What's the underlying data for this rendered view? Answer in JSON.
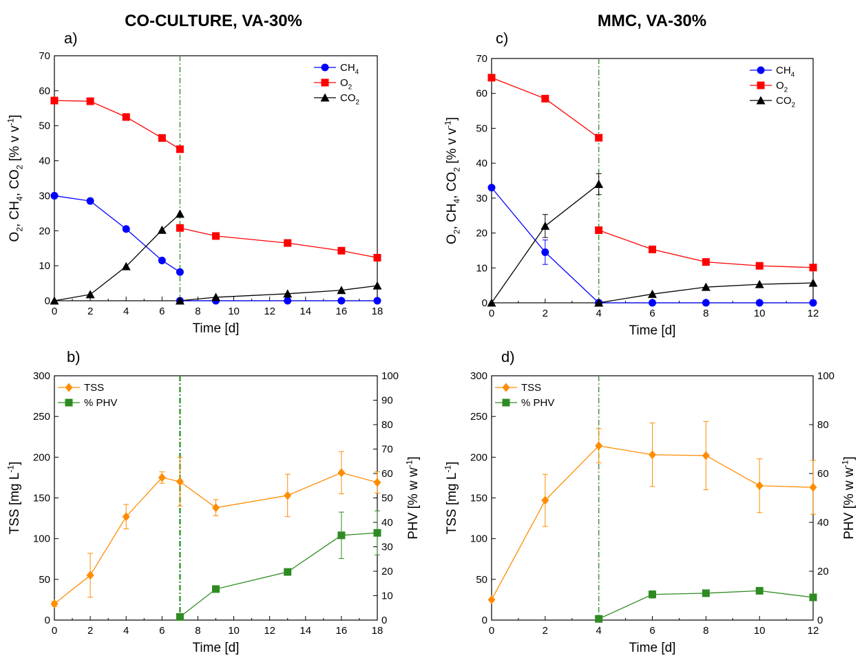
{
  "figure": {
    "left_title": "CO-CULTURE, VA-30%",
    "right_title": "MMC, VA-30%"
  },
  "colors": {
    "ch4": "#0000ff",
    "o2": "#ff0000",
    "co2": "#000000",
    "tss": "#ff8c00",
    "phv": "#2e8b22",
    "divider": "#3a9a3a"
  },
  "chart_data": [
    {
      "id": "a",
      "panel_label": "a)",
      "type": "line",
      "xlabel": "Time [d]",
      "ylabel": "O2, CH4, CO2 [% v v-1]",
      "xlim": [
        0,
        18
      ],
      "xticks": [
        0,
        2,
        4,
        6,
        8,
        10,
        12,
        14,
        16,
        18
      ],
      "ylim": [
        0,
        70
      ],
      "yticks": [
        0,
        10,
        20,
        30,
        40,
        50,
        60,
        70
      ],
      "vline": 7,
      "legend_position": "top-right",
      "series": [
        {
          "name": "CH4",
          "color_key": "ch4",
          "marker": "circle",
          "segments": [
            [
              [
                0,
                30
              ],
              [
                2,
                28.5
              ],
              [
                4,
                20.5
              ],
              [
                6,
                11.5
              ],
              [
                7,
                8.2
              ]
            ],
            [
              [
                7,
                0
              ],
              [
                9,
                0
              ],
              [
                13,
                0
              ],
              [
                16,
                0
              ],
              [
                18,
                0
              ]
            ]
          ]
        },
        {
          "name": "O2",
          "color_key": "o2",
          "marker": "square",
          "segments": [
            [
              [
                0,
                57.2
              ],
              [
                2,
                57
              ],
              [
                4,
                52.5
              ],
              [
                6,
                46.5
              ],
              [
                7,
                43.3
              ]
            ],
            [
              [
                7,
                20.8
              ],
              [
                9,
                18.5
              ],
              [
                13,
                16.5
              ],
              [
                16,
                14.3
              ],
              [
                18,
                12.3
              ]
            ]
          ]
        },
        {
          "name": "CO2",
          "color_key": "co2",
          "marker": "triangle",
          "segments": [
            [
              [
                0,
                0
              ],
              [
                2,
                1.8
              ],
              [
                4,
                9.8
              ],
              [
                6,
                20.2
              ],
              [
                7,
                24.8
              ]
            ],
            [
              [
                7,
                0
              ],
              [
                9,
                1
              ],
              [
                13,
                2
              ],
              [
                16,
                3
              ],
              [
                18,
                4.3
              ]
            ]
          ]
        }
      ]
    },
    {
      "id": "b",
      "panel_label": "b)",
      "type": "line",
      "xlabel": "Time [d]",
      "ylabel": "TSS [mg L-1]",
      "y2label": "PHV [% w w-1]",
      "xlim": [
        0,
        18
      ],
      "xticks": [
        0,
        2,
        4,
        6,
        8,
        10,
        12,
        14,
        16,
        18
      ],
      "ylim": [
        0,
        300
      ],
      "yticks": [
        0,
        50,
        100,
        150,
        200,
        250,
        300
      ],
      "y2lim": [
        0,
        100
      ],
      "y2ticks": [
        0,
        10,
        20,
        30,
        40,
        50,
        60,
        70,
        80,
        90,
        100
      ],
      "vline": 7,
      "legend_position": "top-left",
      "series": [
        {
          "name": "TSS",
          "color_key": "tss",
          "marker": "diamond",
          "axis": "left",
          "segments": [
            [
              [
                0,
                20
              ],
              [
                2,
                55
              ],
              [
                4,
                127
              ],
              [
                6,
                175
              ],
              [
                7,
                170
              ],
              [
                9,
                138
              ],
              [
                13,
                153
              ],
              [
                16,
                181
              ],
              [
                18,
                169
              ]
            ]
          ],
          "errors": [
            3,
            27,
            15,
            7,
            30,
            10,
            26,
            26,
            13
          ]
        },
        {
          "name": "% PHV",
          "color_key": "phv",
          "marker": "square",
          "axis": "right",
          "segments": [
            [
              [
                7,
                1.3
              ],
              [
                9,
                12.7
              ],
              [
                13,
                19.7
              ],
              [
                16,
                34.7
              ],
              [
                18,
                35.7
              ]
            ]
          ],
          "errors": [
            0,
            0,
            0,
            9.5,
            9
          ]
        }
      ]
    },
    {
      "id": "c",
      "panel_label": "c)",
      "type": "line",
      "xlabel": "Time [d]",
      "ylabel": "O2, CH4, CO2 [% v v-1]",
      "xlim": [
        0,
        12
      ],
      "xticks": [
        0,
        2,
        4,
        6,
        8,
        10,
        12
      ],
      "ylim": [
        0,
        70
      ],
      "yticks": [
        0,
        10,
        20,
        30,
        40,
        50,
        60,
        70
      ],
      "vline": 4,
      "legend_position": "top-right",
      "series": [
        {
          "name": "CH4",
          "color_key": "ch4",
          "marker": "circle",
          "segments": [
            [
              [
                0,
                33
              ],
              [
                2,
                14.5
              ],
              [
                4,
                0
              ]
            ],
            [
              [
                4,
                0
              ],
              [
                6,
                0
              ],
              [
                8,
                0
              ],
              [
                10,
                0
              ],
              [
                12,
                0
              ]
            ]
          ],
          "errors": [
            0,
            3.5,
            0,
            0,
            0,
            0,
            0,
            0
          ]
        },
        {
          "name": "O2",
          "color_key": "o2",
          "marker": "square",
          "segments": [
            [
              [
                0,
                64.5
              ],
              [
                2,
                58.5
              ],
              [
                4,
                47.3
              ]
            ],
            [
              [
                4,
                20.8
              ],
              [
                6,
                15.3
              ],
              [
                8,
                11.7
              ],
              [
                10,
                10.6
              ],
              [
                12,
                10.1
              ]
            ]
          ]
        },
        {
          "name": "CO2",
          "color_key": "co2",
          "marker": "triangle",
          "segments": [
            [
              [
                0,
                0
              ],
              [
                2,
                22
              ],
              [
                4,
                34
              ]
            ],
            [
              [
                4,
                0
              ],
              [
                6,
                2.5
              ],
              [
                8,
                4.5
              ],
              [
                10,
                5.3
              ],
              [
                12,
                5.7
              ]
            ]
          ],
          "errors": [
            0,
            3.3,
            3,
            0,
            0,
            0,
            0,
            0
          ]
        }
      ]
    },
    {
      "id": "d",
      "panel_label": "d)",
      "type": "line",
      "xlabel": "Time [d]",
      "ylabel": "TSS [mg L-1]",
      "y2label": "PHV [% w w-1]",
      "xlim": [
        0,
        12
      ],
      "xticks": [
        0,
        2,
        4,
        6,
        8,
        10,
        12
      ],
      "ylim": [
        0,
        300
      ],
      "yticks": [
        0,
        50,
        100,
        150,
        200,
        250,
        300
      ],
      "y2lim": [
        0,
        100
      ],
      "y2ticks": [
        0,
        20,
        40,
        60,
        80,
        100
      ],
      "vline": 4,
      "legend_position": "top-left",
      "series": [
        {
          "name": "TSS",
          "color_key": "tss",
          "marker": "diamond",
          "axis": "left",
          "segments": [
            [
              [
                0,
                25
              ],
              [
                2,
                147
              ],
              [
                4,
                214
              ],
              [
                6,
                203
              ],
              [
                8,
                202
              ],
              [
                10,
                165
              ],
              [
                12,
                163
              ]
            ]
          ],
          "errors": [
            0,
            32,
            21,
            39,
            42,
            33,
            33
          ]
        },
        {
          "name": "% PHV",
          "color_key": "phv",
          "marker": "square",
          "axis": "right",
          "segments": [
            [
              [
                4,
                0.5
              ],
              [
                6,
                10.5
              ],
              [
                8,
                11
              ],
              [
                10,
                12
              ],
              [
                12,
                9.3
              ]
            ]
          ],
          "errors": [
            0,
            1.5,
            0,
            0,
            0
          ]
        }
      ]
    }
  ]
}
